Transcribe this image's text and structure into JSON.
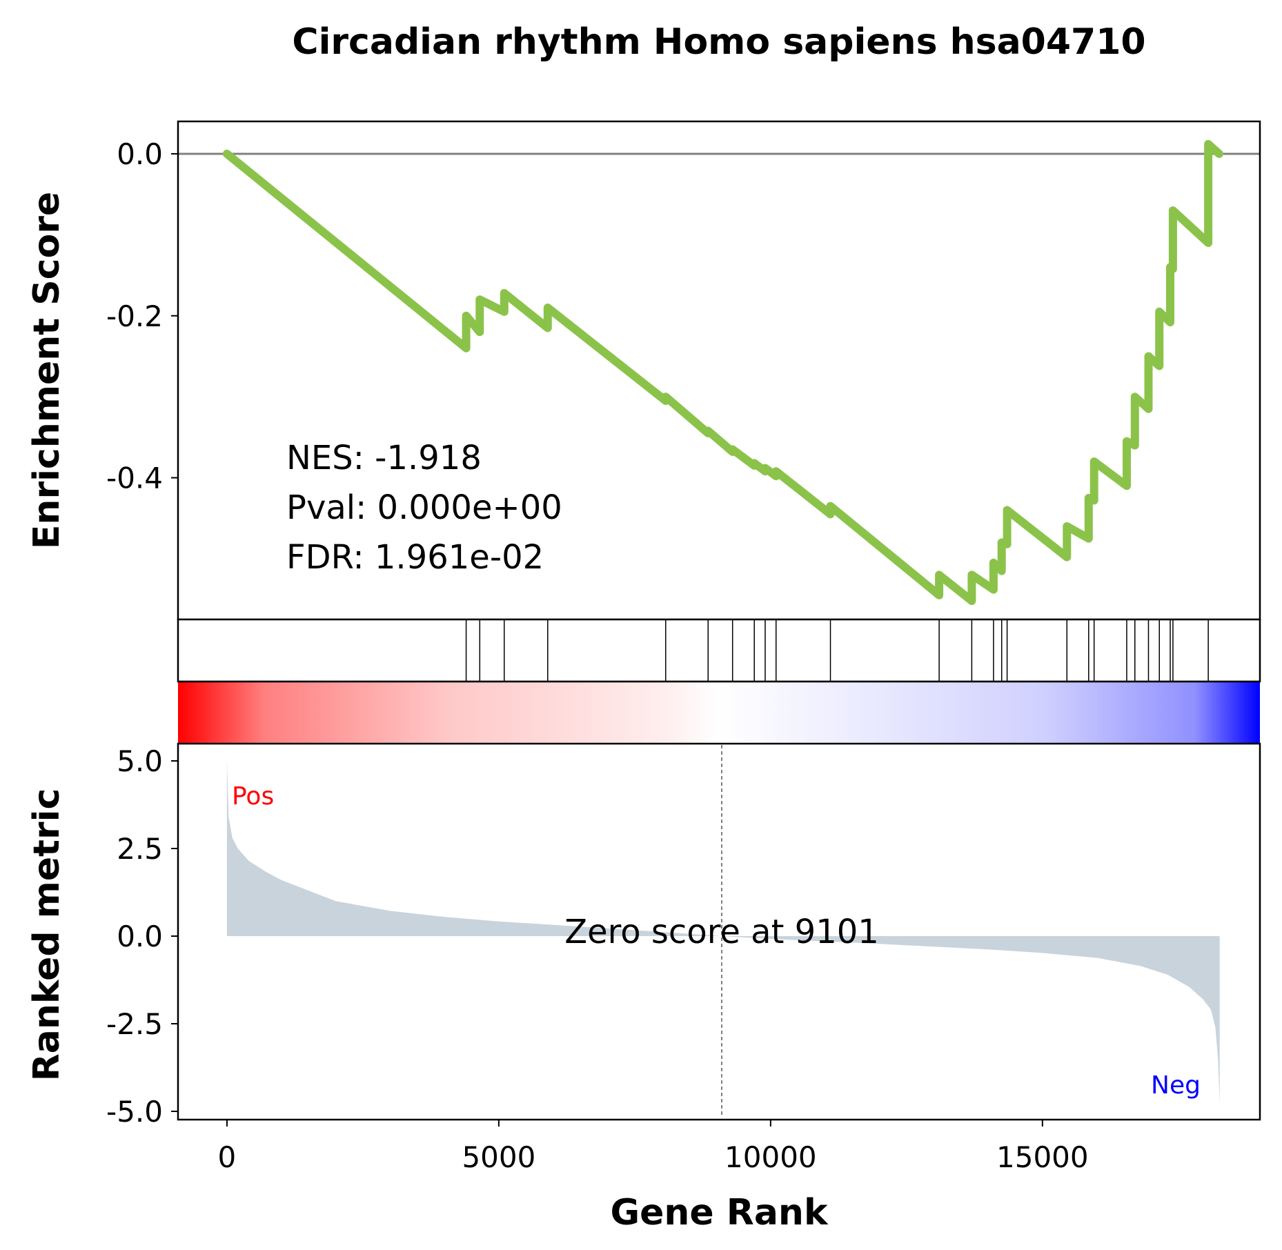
{
  "chart_data": {
    "type": "line",
    "title": "Circadian rhythm Homo sapiens hsa04710",
    "xlabel": "Gene Rank",
    "xlim": [
      -900,
      19000
    ],
    "x_ticks": [
      0,
      5000,
      10000,
      15000
    ],
    "colors": {
      "es_line": "#8bc34a",
      "metric_fill": "#c9d3dc",
      "pos": "#ff0000",
      "neg": "#0000ff"
    },
    "es_panel": {
      "ylabel": "Enrichment Score",
      "ylim": [
        -0.575,
        0.04
      ],
      "y_ticks": [
        "0.0",
        "-0.2",
        "-0.4"
      ],
      "y_tick_values": [
        0.0,
        -0.2,
        -0.4
      ],
      "series": [
        {
          "x": [
            0,
            4400,
            4400,
            4650,
            4650,
            5100,
            5100,
            5900,
            5900,
            8070,
            8070,
            8850,
            8850,
            9300,
            9300,
            9700,
            9700,
            9900,
            9900,
            10100,
            10100,
            11100,
            11100,
            13100,
            13100,
            13700,
            13700,
            14100,
            14100,
            14250,
            14250,
            14350,
            14350,
            15450,
            15450,
            15850,
            15850,
            15950,
            15950,
            16550,
            16550,
            16700,
            16700,
            16950,
            16950,
            17150,
            17150,
            17350,
            17350,
            17400,
            17400,
            18050,
            18050,
            18250
          ],
          "y": [
            0.0,
            -0.24,
            -0.2,
            -0.22,
            -0.18,
            -0.195,
            -0.172,
            -0.215,
            -0.19,
            -0.305,
            -0.3,
            -0.345,
            -0.342,
            -0.368,
            -0.365,
            -0.385,
            -0.382,
            -0.392,
            -0.388,
            -0.398,
            -0.392,
            -0.445,
            -0.435,
            -0.545,
            -0.52,
            -0.552,
            -0.52,
            -0.538,
            -0.505,
            -0.515,
            -0.48,
            -0.482,
            -0.44,
            -0.498,
            -0.46,
            -0.475,
            -0.425,
            -0.428,
            -0.38,
            -0.41,
            -0.355,
            -0.36,
            -0.3,
            -0.315,
            -0.25,
            -0.262,
            -0.195,
            -0.208,
            -0.14,
            -0.142,
            -0.07,
            -0.11,
            0.012,
            0.0
          ]
        }
      ]
    },
    "hits": [
      4400,
      4650,
      5100,
      5900,
      8070,
      8850,
      9300,
      9700,
      9900,
      10100,
      11100,
      13100,
      13700,
      14100,
      14250,
      14350,
      15450,
      15850,
      15950,
      16550,
      16700,
      16950,
      17150,
      17350,
      17400,
      18050
    ],
    "stats": {
      "nes": "NES: -1.918",
      "pval": "Pval: 0.000e+00",
      "fdr": "FDR: 1.961e-02"
    },
    "metric_panel": {
      "ylabel": "Ranked metric",
      "ylim": [
        -5.0,
        5.0
      ],
      "y_ticks": [
        "5.0",
        "2.5",
        "0.0",
        "-2.5",
        "-5.0"
      ],
      "y_tick_values": [
        5.0,
        2.5,
        0.0,
        -2.5,
        -5.0
      ],
      "x": [
        0,
        30,
        100,
        200,
        400,
        700,
        1000,
        1500,
        2000,
        3000,
        4000,
        5000,
        6000,
        7000,
        8000,
        9101,
        10000,
        11000,
        12000,
        13000,
        14000,
        15000,
        16000,
        16800,
        17300,
        17700,
        17950,
        18100,
        18180,
        18230,
        18260
      ],
      "y": [
        5.0,
        3.4,
        2.8,
        2.5,
        2.15,
        1.85,
        1.6,
        1.3,
        1.0,
        0.72,
        0.55,
        0.42,
        0.32,
        0.22,
        0.12,
        0.0,
        -0.08,
        -0.15,
        -0.22,
        -0.3,
        -0.38,
        -0.48,
        -0.62,
        -0.85,
        -1.1,
        -1.45,
        -1.8,
        -2.1,
        -2.6,
        -3.5,
        -4.8
      ],
      "zero_score_label": "Zero score at 9101",
      "zero_x": 9101,
      "pos_label": "Pos",
      "neg_label": "Neg"
    }
  }
}
